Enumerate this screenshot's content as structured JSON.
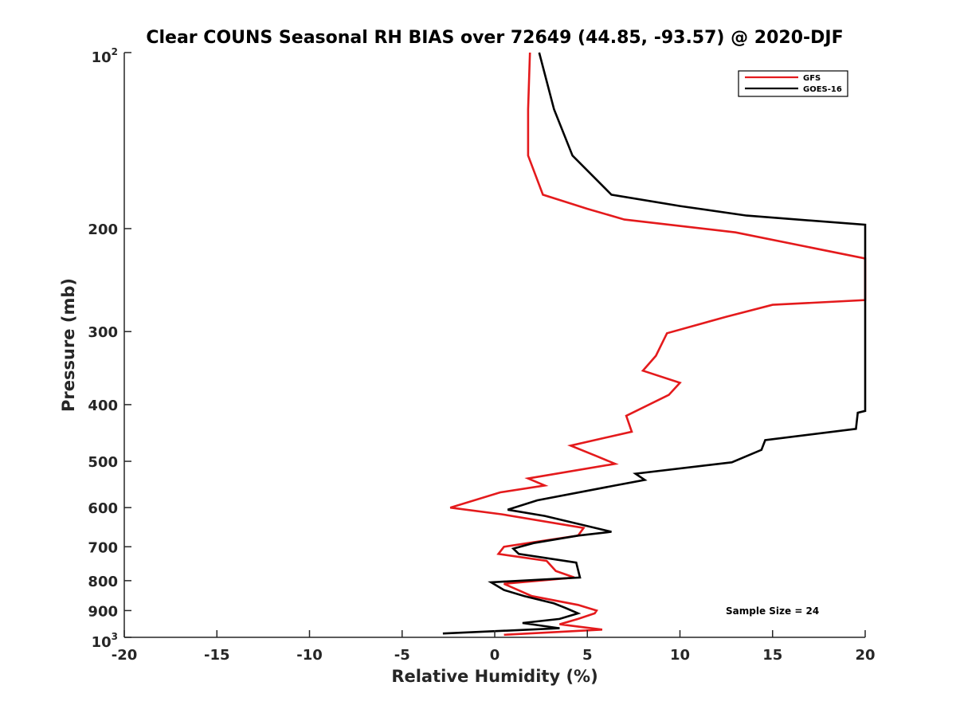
{
  "chart_data": {
    "type": "line",
    "title": "Clear COUNS Seasonal RH BIAS over 72649 (44.85, -93.57) @ 2020-DJF",
    "xlabel": "Relative Humidity (%)",
    "ylabel": "Pressure (mb)",
    "xlim": [
      -20,
      20
    ],
    "ylim": [
      100,
      1000
    ],
    "y_scale": "log",
    "y_reversed": true,
    "grid": false,
    "x_ticks": [
      -20,
      -15,
      -10,
      -5,
      0,
      5,
      10,
      15,
      20
    ],
    "x_tick_labels": [
      "-20",
      "-15",
      "-10",
      "-5",
      "0",
      "5",
      "10",
      "15",
      "20"
    ],
    "y_ticks": [
      200,
      300,
      400,
      500,
      600,
      700,
      800,
      900
    ],
    "y_tick_labels": [
      "200",
      "300",
      "400",
      "500",
      "600",
      "700",
      "800",
      "900"
    ],
    "y_top_label": {
      "base": "10",
      "exp": "2"
    },
    "y_bottom_label": {
      "base": "10",
      "exp": "3"
    },
    "legend_position": "top-right",
    "annotation": "Sample Size = 24",
    "series": [
      {
        "name": "GFS",
        "color": "#e41a1c",
        "points": [
          [
            1.9,
            100
          ],
          [
            1.8,
            125
          ],
          [
            1.8,
            150
          ],
          [
            2.6,
            175
          ],
          [
            5.0,
            185
          ],
          [
            7.0,
            193
          ],
          [
            13.0,
            203
          ],
          [
            20.0,
            225
          ],
          [
            20.0,
            265
          ],
          [
            15.0,
            270
          ],
          [
            12.5,
            283
          ],
          [
            9.3,
            302
          ],
          [
            8.7,
            330
          ],
          [
            8.0,
            350
          ],
          [
            10.0,
            367
          ],
          [
            9.4,
            385
          ],
          [
            7.1,
            418
          ],
          [
            7.4,
            445
          ],
          [
            4.1,
            470
          ],
          [
            5.5,
            490
          ],
          [
            6.5,
            505
          ],
          [
            1.8,
            535
          ],
          [
            2.7,
            550
          ],
          [
            0.3,
            565
          ],
          [
            -2.4,
            600
          ],
          [
            0.4,
            616
          ],
          [
            4.8,
            650
          ],
          [
            4.5,
            670
          ],
          [
            1.8,
            690
          ],
          [
            0.5,
            700
          ],
          [
            0.2,
            720
          ],
          [
            2.8,
            740
          ],
          [
            3.3,
            770
          ],
          [
            4.3,
            790
          ],
          [
            0.5,
            810
          ],
          [
            2.0,
            850
          ],
          [
            4.5,
            880
          ],
          [
            5.5,
            900
          ],
          [
            5.4,
            910
          ],
          [
            4.5,
            930
          ],
          [
            3.5,
            950
          ],
          [
            5.8,
            970
          ],
          [
            0.5,
            990
          ]
        ]
      },
      {
        "name": "GOES-16",
        "color": "#000000",
        "points": [
          [
            2.4,
            100
          ],
          [
            3.2,
            125
          ],
          [
            4.2,
            150
          ],
          [
            6.3,
            175
          ],
          [
            10.0,
            183
          ],
          [
            13.6,
            190
          ],
          [
            20.0,
            197
          ],
          [
            20.0,
            410
          ],
          [
            19.6,
            413
          ],
          [
            19.5,
            440
          ],
          [
            14.6,
            460
          ],
          [
            14.4,
            478
          ],
          [
            12.8,
            502
          ],
          [
            7.6,
            525
          ],
          [
            8.1,
            538
          ],
          [
            6.5,
            550
          ],
          [
            2.3,
            583
          ],
          [
            0.7,
            605
          ],
          [
            2.7,
            620
          ],
          [
            6.3,
            660
          ],
          [
            4.5,
            670
          ],
          [
            2.1,
            690
          ],
          [
            1.0,
            705
          ],
          [
            1.3,
            720
          ],
          [
            4.4,
            745
          ],
          [
            4.6,
            790
          ],
          [
            -0.2,
            805
          ],
          [
            0.5,
            830
          ],
          [
            1.6,
            850
          ],
          [
            3.2,
            875
          ],
          [
            3.8,
            890
          ],
          [
            4.5,
            910
          ],
          [
            3.5,
            930
          ],
          [
            1.5,
            945
          ],
          [
            3.5,
            965
          ],
          [
            -2.8,
            985
          ]
        ]
      }
    ]
  }
}
